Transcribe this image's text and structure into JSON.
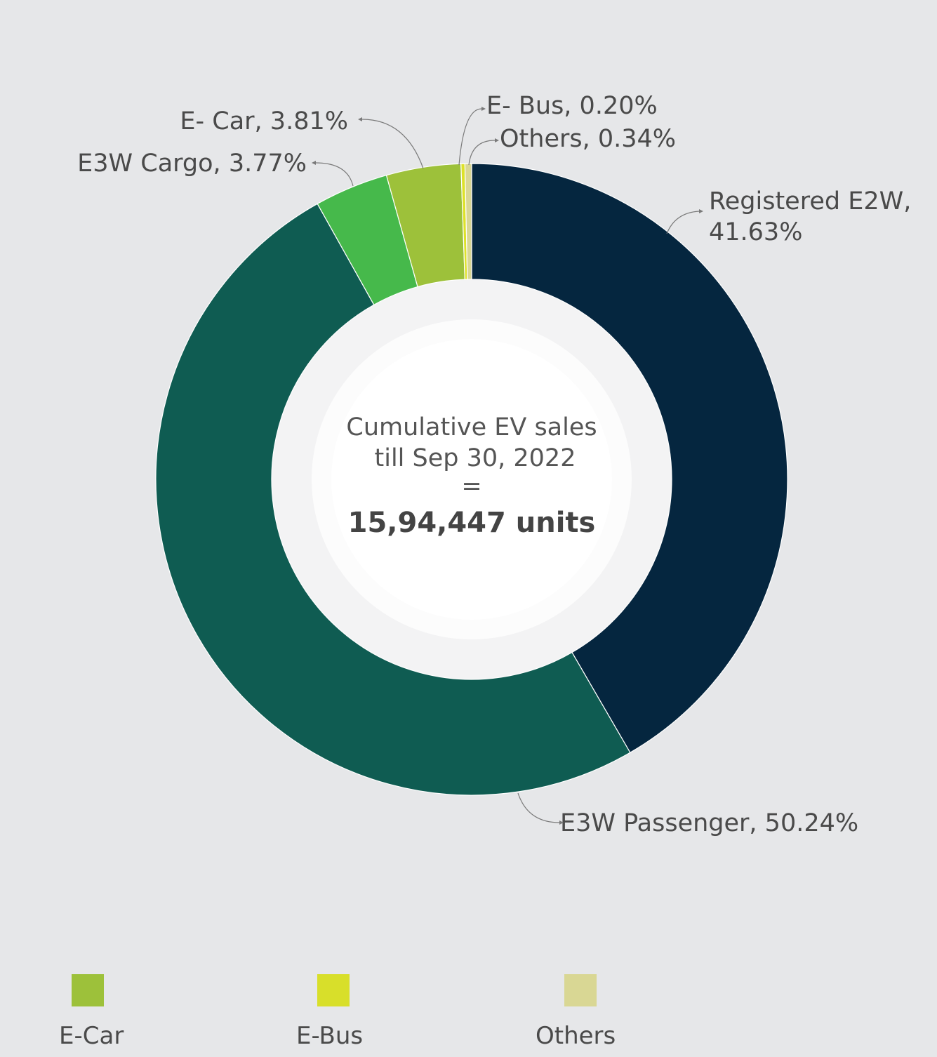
{
  "chart_data": {
    "type": "pie",
    "donut": true,
    "slices": [
      {
        "category": "Registered E2W",
        "label_line1": "Registered E2W,",
        "label_line2": "41.63%",
        "value": 41.63,
        "color": "#05263f"
      },
      {
        "category": "E3W Passenger",
        "label": "E3W Passenger, 50.24%",
        "value": 50.24,
        "color": "#0f5c52"
      },
      {
        "category": "E3W Cargo",
        "label": "E3W Cargo, 3.77%",
        "value": 3.77,
        "color": "#46b94b"
      },
      {
        "category": "E- Car",
        "label": "E- Car, 3.81%",
        "value": 3.81,
        "color": "#9dc13a"
      },
      {
        "category": "E- Bus",
        "label": "E- Bus, 0.20%",
        "value": 0.2,
        "color": "#dde12a"
      },
      {
        "category": "Others",
        "label": "Others, 0.34%",
        "value": 0.34,
        "color": "#d9d794"
      }
    ],
    "center_text": {
      "line1": "Cumulative EV sales",
      "line2": "till Sep 30, 2022",
      "line3": "=",
      "total": "15,94,447 units"
    },
    "legend": [
      {
        "label": "E-Car",
        "color": "#9dc13a"
      },
      {
        "label": "E-Bus",
        "color": "#d8df2a"
      },
      {
        "label": "Others",
        "color": "#d9d794"
      }
    ],
    "legend_position": "bottom"
  }
}
